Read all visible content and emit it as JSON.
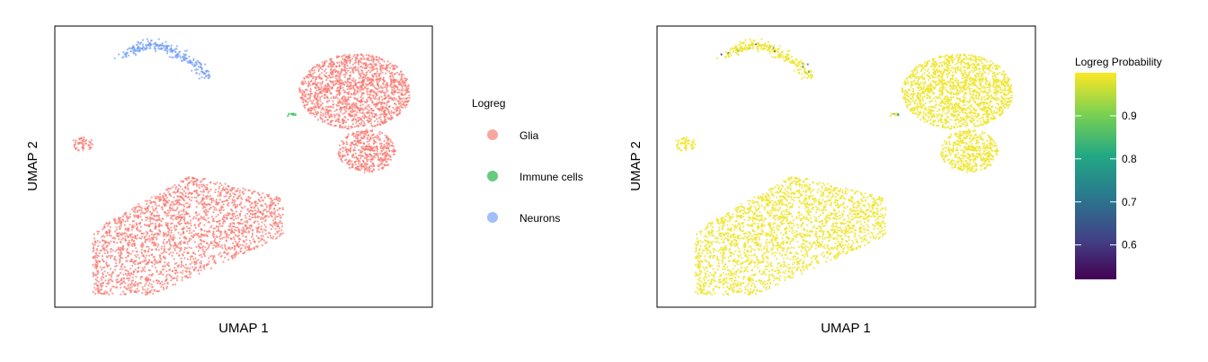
{
  "chart_data": [
    {
      "type": "scatter",
      "xlabel": "UMAP 1",
      "ylabel": "UMAP 2",
      "axis_ticks": "none",
      "grid": false,
      "legend_position": "right",
      "legend": {
        "title": "Logreg",
        "entries": [
          {
            "label": "Glia",
            "color": "#f8766d"
          },
          {
            "label": "Immune cells",
            "color": "#3fbf5f"
          },
          {
            "label": "Neurons",
            "color": "#6f9cf7"
          }
        ]
      },
      "clusters": [
        {
          "category": "Neurons",
          "shape": "arc",
          "approx_points": 260
        },
        {
          "category": "Immune cells",
          "shape": "small-clump",
          "approx_points": 12
        },
        {
          "category": "Glia",
          "shape": "large-blob-upper-right",
          "approx_points": 1500
        },
        {
          "category": "Glia",
          "shape": "blob-right-lower",
          "approx_points": 450
        },
        {
          "category": "Glia",
          "shape": "small-blob-left",
          "approx_points": 55
        },
        {
          "category": "Glia",
          "shape": "large-fan-bottom",
          "approx_points": 2200
        }
      ]
    },
    {
      "type": "scatter",
      "xlabel": "UMAP 1",
      "ylabel": "UMAP 2",
      "axis_ticks": "none",
      "grid": false,
      "legend_position": "right",
      "colorbar": {
        "title": "Logreg Probability",
        "colormap": "viridis",
        "range": [
          0.52,
          1.0
        ],
        "ticks": [
          0.6,
          0.7,
          0.8,
          0.9
        ],
        "tick_labels": [
          "0.6",
          "0.7",
          "0.8",
          "0.9"
        ],
        "colors": [
          "#440154",
          "#414487",
          "#2a788e",
          "#22a884",
          "#7ad151",
          "#fde725"
        ]
      },
      "note_values": "nearly all cells ~0.99 (yellow); a few cells in the neuron arc and immune clump are lower (0.55-0.85)"
    }
  ]
}
